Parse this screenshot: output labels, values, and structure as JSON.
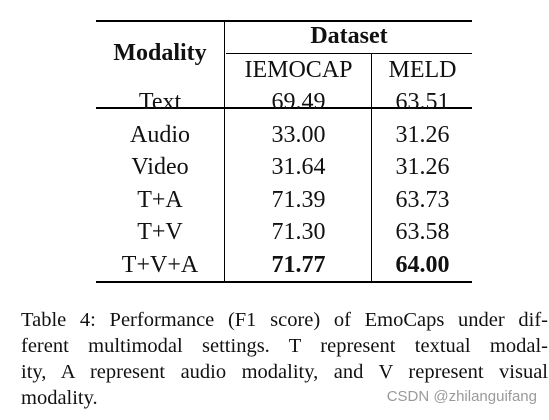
{
  "table": {
    "header": {
      "modality": "Modality",
      "dataset": "Dataset",
      "iemocap": "IEMOCAP",
      "meld": "MELD"
    },
    "rows": [
      {
        "modality": "Text",
        "iemocap": "69.49",
        "meld": "63.51"
      },
      {
        "modality": "Audio",
        "iemocap": "33.00",
        "meld": "31.26"
      },
      {
        "modality": "Video",
        "iemocap": "31.64",
        "meld": "31.26"
      },
      {
        "modality": "T+A",
        "iemocap": "71.39",
        "meld": "63.73"
      },
      {
        "modality": "T+V",
        "iemocap": "71.30",
        "meld": "63.58"
      },
      {
        "modality": "T+V+A",
        "iemocap": "71.77",
        "meld": "64.00",
        "bold_values": true
      }
    ]
  },
  "caption": {
    "lines": [
      "Table 4: Performance (F1 score) of EmoCaps under dif-",
      "ferent multimodal settings. T represent textual modal-",
      "ity, A represent audio modality, and V represent visual",
      "modality."
    ]
  },
  "watermark": "CSDN @zhilanguifang"
}
